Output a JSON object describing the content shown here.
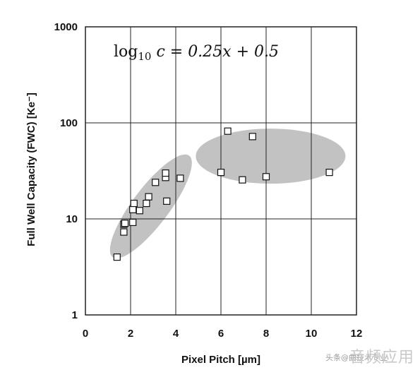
{
  "chart_data": {
    "type": "scatter",
    "title": "",
    "formula": {
      "log": "log",
      "base": "10",
      "expr": " c = 0.25x + 0.5"
    },
    "xlabel": "Pixel Pitch [µm]",
    "ylabel": "Full Well Capacity (FWC) [Ke⁻]",
    "xlim": [
      0,
      12
    ],
    "ylim": [
      1,
      1000
    ],
    "yscale": "log",
    "x_ticks": [
      0,
      2,
      4,
      6,
      8,
      10,
      12
    ],
    "y_ticks": [
      1,
      10,
      100,
      1000
    ],
    "grid": true,
    "marker": "open-square",
    "points": [
      {
        "x": 1.4,
        "y": 4
      },
      {
        "x": 1.7,
        "y": 7.3
      },
      {
        "x": 1.7,
        "y": 8.8
      },
      {
        "x": 1.75,
        "y": 9
      },
      {
        "x": 2.1,
        "y": 9.2
      },
      {
        "x": 2.1,
        "y": 12.5
      },
      {
        "x": 2.15,
        "y": 14.5
      },
      {
        "x": 2.4,
        "y": 12.2
      },
      {
        "x": 2.7,
        "y": 14.5
      },
      {
        "x": 2.8,
        "y": 17
      },
      {
        "x": 3.1,
        "y": 24
      },
      {
        "x": 3.55,
        "y": 27
      },
      {
        "x": 3.55,
        "y": 30
      },
      {
        "x": 3.6,
        "y": 15.3
      },
      {
        "x": 4.2,
        "y": 26.5
      },
      {
        "x": 6.0,
        "y": 30.5
      },
      {
        "x": 6.3,
        "y": 82
      },
      {
        "x": 6.95,
        "y": 25.5
      },
      {
        "x": 7.4,
        "y": 72
      },
      {
        "x": 8.0,
        "y": 27.5
      },
      {
        "x": 10.8,
        "y": 30.5
      }
    ],
    "clusters": [
      {
        "cx": 2.9,
        "cy": 13.5,
        "color": "#c2c2c2"
      },
      {
        "cx": 8.2,
        "cy": 45,
        "color": "#c2c2c2"
      }
    ]
  },
  "watermark": {
    "main": "音频应用",
    "small": "头条@曲技术专业"
  }
}
